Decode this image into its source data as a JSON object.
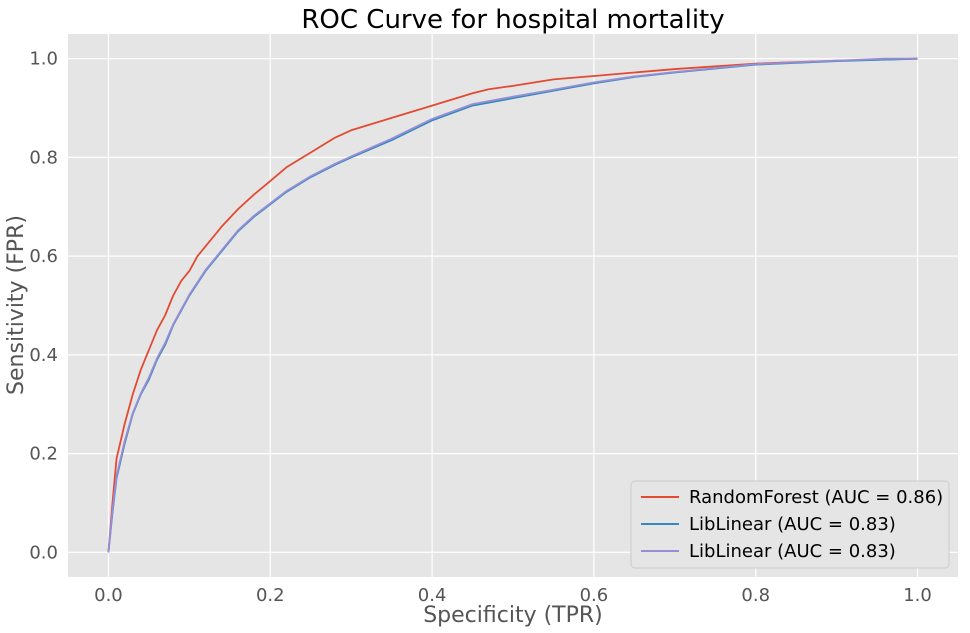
{
  "chart_data": {
    "type": "line",
    "title": "ROC Curve for hospital mortality",
    "xlabel": "Specificity (TPR)",
    "ylabel": "Sensitivity (FPR)",
    "xlim": [
      -0.05,
      1.05
    ],
    "ylim": [
      -0.05,
      1.05
    ],
    "xticks": [
      "0.0",
      "0.2",
      "0.4",
      "0.6",
      "0.8",
      "1.0"
    ],
    "yticks": [
      "0.0",
      "0.2",
      "0.4",
      "0.6",
      "0.8",
      "1.0"
    ],
    "grid": true,
    "background": "#e5e5e5",
    "legend_position": "lower-right",
    "series": [
      {
        "name": "RandomForest (AUC = 0.86)",
        "color": "#e24a33",
        "x": [
          0.0,
          0.005,
          0.01,
          0.02,
          0.03,
          0.04,
          0.05,
          0.06,
          0.07,
          0.08,
          0.09,
          0.1,
          0.11,
          0.12,
          0.14,
          0.16,
          0.18,
          0.2,
          0.22,
          0.25,
          0.28,
          0.3,
          0.35,
          0.4,
          0.45,
          0.47,
          0.5,
          0.55,
          0.6,
          0.65,
          0.7,
          0.8,
          0.9,
          1.0
        ],
        "y": [
          0.0,
          0.1,
          0.19,
          0.26,
          0.32,
          0.37,
          0.41,
          0.45,
          0.48,
          0.52,
          0.55,
          0.57,
          0.6,
          0.62,
          0.66,
          0.695,
          0.725,
          0.752,
          0.78,
          0.81,
          0.84,
          0.855,
          0.88,
          0.905,
          0.93,
          0.938,
          0.945,
          0.958,
          0.965,
          0.972,
          0.979,
          0.99,
          0.996,
          1.0
        ]
      },
      {
        "name": "LibLinear (AUC = 0.83)",
        "color": "#348abd",
        "x": [
          0.0,
          0.005,
          0.01,
          0.02,
          0.03,
          0.04,
          0.05,
          0.06,
          0.07,
          0.08,
          0.09,
          0.1,
          0.12,
          0.14,
          0.16,
          0.18,
          0.2,
          0.22,
          0.25,
          0.28,
          0.3,
          0.35,
          0.4,
          0.45,
          0.5,
          0.55,
          0.6,
          0.65,
          0.7,
          0.8,
          0.9,
          1.0
        ],
        "y": [
          0.0,
          0.08,
          0.15,
          0.22,
          0.28,
          0.32,
          0.35,
          0.39,
          0.42,
          0.46,
          0.49,
          0.52,
          0.57,
          0.61,
          0.65,
          0.68,
          0.705,
          0.73,
          0.76,
          0.785,
          0.8,
          0.835,
          0.875,
          0.905,
          0.92,
          0.935,
          0.95,
          0.963,
          0.972,
          0.988,
          0.995,
          1.0
        ]
      },
      {
        "name": "LibLinear (AUC = 0.83)",
        "color": "#988ed5",
        "x": [
          0.0,
          0.005,
          0.01,
          0.02,
          0.03,
          0.04,
          0.05,
          0.06,
          0.07,
          0.08,
          0.09,
          0.1,
          0.12,
          0.14,
          0.16,
          0.18,
          0.2,
          0.22,
          0.25,
          0.28,
          0.3,
          0.35,
          0.4,
          0.45,
          0.5,
          0.55,
          0.6,
          0.65,
          0.7,
          0.8,
          0.9,
          0.96,
          1.0
        ],
        "y": [
          0.0,
          0.085,
          0.155,
          0.225,
          0.282,
          0.322,
          0.354,
          0.393,
          0.424,
          0.462,
          0.492,
          0.522,
          0.572,
          0.612,
          0.652,
          0.682,
          0.707,
          0.732,
          0.762,
          0.787,
          0.802,
          0.838,
          0.878,
          0.908,
          0.923,
          0.937,
          0.952,
          0.964,
          0.973,
          0.989,
          0.996,
          1.0,
          1.0
        ]
      }
    ]
  }
}
